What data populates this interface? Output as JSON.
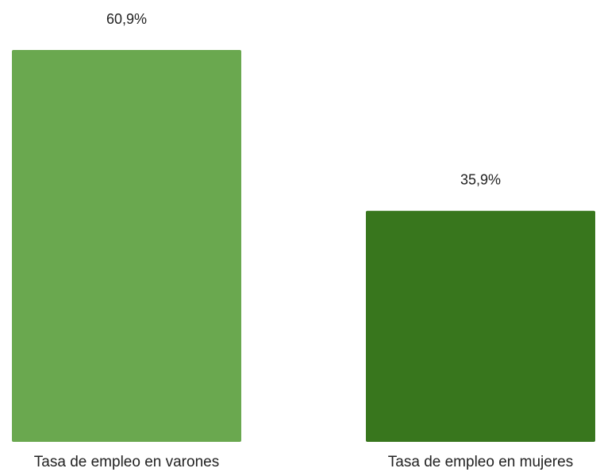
{
  "chart_data": {
    "type": "bar",
    "categories": [
      "Tasa de empleo en varones",
      "Tasa de empleo en mujeres"
    ],
    "values": [
      60.9,
      35.9
    ],
    "value_labels": [
      "60,9%",
      "35,9%"
    ],
    "colors": [
      "#6aa84f",
      "#38761d"
    ]
  }
}
